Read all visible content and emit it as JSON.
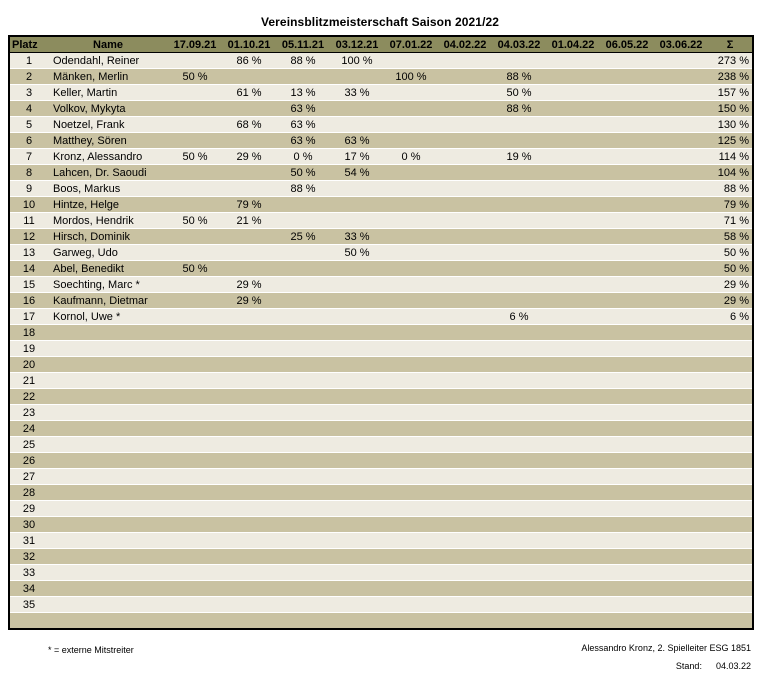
{
  "title": "Vereinsblitzmeisterschaft Saison 2021/22",
  "colors": {
    "header_bg": "#8c8c5e",
    "row_light": "#eeebe1",
    "row_dark": "#c9c2a2",
    "border": "#000000"
  },
  "table": {
    "columns": [
      "Platz",
      "Name",
      "17.09.21",
      "01.10.21",
      "05.11.21",
      "03.12.21",
      "07.01.22",
      "04.02.22",
      "04.03.22",
      "01.04.22",
      "06.05.22",
      "03.06.22",
      "Σ"
    ],
    "rows": [
      {
        "platz": "1",
        "name": "Odendahl, Reiner",
        "values": [
          "",
          "86 %",
          "88 %",
          "100 %",
          "",
          "",
          "",
          "",
          "",
          ""
        ],
        "sum": "273 %"
      },
      {
        "platz": "2",
        "name": "Mänken, Merlin",
        "values": [
          "50 %",
          "",
          "",
          "",
          "100 %",
          "",
          "88 %",
          "",
          "",
          ""
        ],
        "sum": "238 %"
      },
      {
        "platz": "3",
        "name": "Keller, Martin",
        "values": [
          "",
          "61 %",
          "13 %",
          "33 %",
          "",
          "",
          "50 %",
          "",
          "",
          ""
        ],
        "sum": "157 %"
      },
      {
        "platz": "4",
        "name": "Volkov, Mykyta",
        "values": [
          "",
          "",
          "63 %",
          "",
          "",
          "",
          "88 %",
          "",
          "",
          ""
        ],
        "sum": "150 %"
      },
      {
        "platz": "5",
        "name": "Noetzel, Frank",
        "values": [
          "",
          "68 %",
          "63 %",
          "",
          "",
          "",
          "",
          "",
          "",
          ""
        ],
        "sum": "130 %"
      },
      {
        "platz": "6",
        "name": "Matthey, Sören",
        "values": [
          "",
          "",
          "63 %",
          "63 %",
          "",
          "",
          "",
          "",
          "",
          ""
        ],
        "sum": "125 %"
      },
      {
        "platz": "7",
        "name": "Kronz, Alessandro",
        "values": [
          "50 %",
          "29 %",
          "0 %",
          "17 %",
          "0 %",
          "",
          "19 %",
          "",
          "",
          ""
        ],
        "sum": "114 %"
      },
      {
        "platz": "8",
        "name": "Lahcen, Dr. Saoudi",
        "values": [
          "",
          "",
          "50 %",
          "54 %",
          "",
          "",
          "",
          "",
          "",
          ""
        ],
        "sum": "104 %"
      },
      {
        "platz": "9",
        "name": "Boos, Markus",
        "values": [
          "",
          "",
          "88 %",
          "",
          "",
          "",
          "",
          "",
          "",
          ""
        ],
        "sum": "88 %"
      },
      {
        "platz": "10",
        "name": "Hintze, Helge",
        "values": [
          "",
          "79 %",
          "",
          "",
          "",
          "",
          "",
          "",
          "",
          ""
        ],
        "sum": "79 %"
      },
      {
        "platz": "11",
        "name": "Mordos, Hendrik",
        "values": [
          "50 %",
          "21 %",
          "",
          "",
          "",
          "",
          "",
          "",
          "",
          ""
        ],
        "sum": "71 %"
      },
      {
        "platz": "12",
        "name": "Hirsch, Dominik",
        "values": [
          "",
          "",
          "25 %",
          "33 %",
          "",
          "",
          "",
          "",
          "",
          ""
        ],
        "sum": "58 %"
      },
      {
        "platz": "13",
        "name": "Garweg, Udo",
        "values": [
          "",
          "",
          "",
          "50 %",
          "",
          "",
          "",
          "",
          "",
          ""
        ],
        "sum": "50 %"
      },
      {
        "platz": "14",
        "name": "Abel, Benedikt",
        "values": [
          "50 %",
          "",
          "",
          "",
          "",
          "",
          "",
          "",
          "",
          ""
        ],
        "sum": "50 %"
      },
      {
        "platz": "15",
        "name": "Soechting, Marc *",
        "values": [
          "",
          "29 %",
          "",
          "",
          "",
          "",
          "",
          "",
          "",
          ""
        ],
        "sum": "29 %"
      },
      {
        "platz": "16",
        "name": "Kaufmann, Dietmar",
        "values": [
          "",
          "29 %",
          "",
          "",
          "",
          "",
          "",
          "",
          "",
          ""
        ],
        "sum": "29 %"
      },
      {
        "platz": "17",
        "name": "Kornol, Uwe *",
        "values": [
          "",
          "",
          "",
          "",
          "",
          "",
          "6 %",
          "",
          "",
          ""
        ],
        "sum": "6 %"
      },
      {
        "platz": "18",
        "name": "",
        "values": [
          "",
          "",
          "",
          "",
          "",
          "",
          "",
          "",
          "",
          ""
        ],
        "sum": ""
      },
      {
        "platz": "19",
        "name": "",
        "values": [
          "",
          "",
          "",
          "",
          "",
          "",
          "",
          "",
          "",
          ""
        ],
        "sum": ""
      },
      {
        "platz": "20",
        "name": "",
        "values": [
          "",
          "",
          "",
          "",
          "",
          "",
          "",
          "",
          "",
          ""
        ],
        "sum": ""
      },
      {
        "platz": "21",
        "name": "",
        "values": [
          "",
          "",
          "",
          "",
          "",
          "",
          "",
          "",
          "",
          ""
        ],
        "sum": ""
      },
      {
        "platz": "22",
        "name": "",
        "values": [
          "",
          "",
          "",
          "",
          "",
          "",
          "",
          "",
          "",
          ""
        ],
        "sum": ""
      },
      {
        "platz": "23",
        "name": "",
        "values": [
          "",
          "",
          "",
          "",
          "",
          "",
          "",
          "",
          "",
          ""
        ],
        "sum": ""
      },
      {
        "platz": "24",
        "name": "",
        "values": [
          "",
          "",
          "",
          "",
          "",
          "",
          "",
          "",
          "",
          ""
        ],
        "sum": ""
      },
      {
        "platz": "25",
        "name": "",
        "values": [
          "",
          "",
          "",
          "",
          "",
          "",
          "",
          "",
          "",
          ""
        ],
        "sum": ""
      },
      {
        "platz": "26",
        "name": "",
        "values": [
          "",
          "",
          "",
          "",
          "",
          "",
          "",
          "",
          "",
          ""
        ],
        "sum": ""
      },
      {
        "platz": "27",
        "name": "",
        "values": [
          "",
          "",
          "",
          "",
          "",
          "",
          "",
          "",
          "",
          ""
        ],
        "sum": ""
      },
      {
        "platz": "28",
        "name": "",
        "values": [
          "",
          "",
          "",
          "",
          "",
          "",
          "",
          "",
          "",
          ""
        ],
        "sum": ""
      },
      {
        "platz": "29",
        "name": "",
        "values": [
          "",
          "",
          "",
          "",
          "",
          "",
          "",
          "",
          "",
          ""
        ],
        "sum": ""
      },
      {
        "platz": "30",
        "name": "",
        "values": [
          "",
          "",
          "",
          "",
          "",
          "",
          "",
          "",
          "",
          ""
        ],
        "sum": ""
      },
      {
        "platz": "31",
        "name": "",
        "values": [
          "",
          "",
          "",
          "",
          "",
          "",
          "",
          "",
          "",
          ""
        ],
        "sum": ""
      },
      {
        "platz": "32",
        "name": "",
        "values": [
          "",
          "",
          "",
          "",
          "",
          "",
          "",
          "",
          "",
          ""
        ],
        "sum": ""
      },
      {
        "platz": "33",
        "name": "",
        "values": [
          "",
          "",
          "",
          "",
          "",
          "",
          "",
          "",
          "",
          ""
        ],
        "sum": ""
      },
      {
        "platz": "34",
        "name": "",
        "values": [
          "",
          "",
          "",
          "",
          "",
          "",
          "",
          "",
          "",
          ""
        ],
        "sum": ""
      },
      {
        "platz": "35",
        "name": "",
        "values": [
          "",
          "",
          "",
          "",
          "",
          "",
          "",
          "",
          "",
          ""
        ],
        "sum": ""
      },
      {
        "platz": "",
        "name": "",
        "values": [
          "",
          "",
          "",
          "",
          "",
          "",
          "",
          "",
          "",
          ""
        ],
        "sum": ""
      }
    ]
  },
  "footer": {
    "note": "* = externe Mitstreiter",
    "credit": "Alessandro Kronz, 2. Spielleiter ESG 1851",
    "stand_label": "Stand:",
    "stand_date": "04.03.22"
  }
}
